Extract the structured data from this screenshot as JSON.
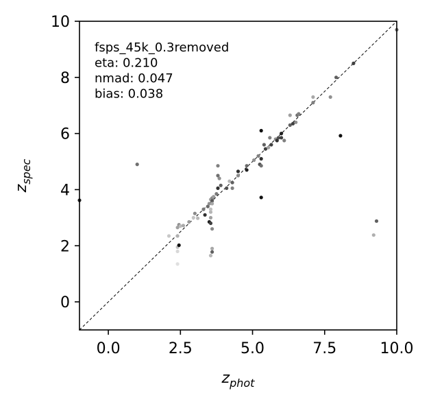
{
  "chart_data": {
    "type": "scatter",
    "xlim": [
      -1,
      10
    ],
    "ylim": [
      -1,
      10
    ],
    "xticks": [
      0.0,
      2.5,
      5.0,
      7.5,
      10.0
    ],
    "xtick_labels": [
      "0.0",
      "2.5",
      "5.0",
      "7.5",
      "10.0"
    ],
    "yticks": [
      0,
      2,
      4,
      6,
      8,
      10
    ],
    "ytick_labels": [
      "0",
      "2",
      "4",
      "6",
      "8",
      "10"
    ],
    "xlabel": {
      "base": "z",
      "sub": "phot"
    },
    "ylabel": {
      "base": "z",
      "sub": "spec"
    },
    "grid": false,
    "reference_line": "y = x (dashed)",
    "annotation_lines": [
      "fsps_45k_0.3removed",
      "eta: 0.210",
      "nmad: 0.047",
      "bias: 0.038"
    ],
    "points": [
      {
        "x": -1.0,
        "y": 3.62,
        "c": "#202020"
      },
      {
        "x": 1.0,
        "y": 4.9,
        "c": "#707070"
      },
      {
        "x": 2.1,
        "y": 2.35,
        "c": "#c8c8c8"
      },
      {
        "x": 2.4,
        "y": 1.35,
        "c": "#e0e0e0"
      },
      {
        "x": 2.4,
        "y": 1.8,
        "c": "#d8d8d8"
      },
      {
        "x": 2.4,
        "y": 1.95,
        "c": "#c0c0c0"
      },
      {
        "x": 2.4,
        "y": 2.35,
        "c": "#b0b0b0"
      },
      {
        "x": 2.4,
        "y": 2.65,
        "c": "#a0a0a0"
      },
      {
        "x": 2.45,
        "y": 2.75,
        "c": "#909090"
      },
      {
        "x": 2.45,
        "y": 2.02,
        "c": "#101010"
      },
      {
        "x": 2.5,
        "y": 2.7,
        "c": "#bcbcbc"
      },
      {
        "x": 2.6,
        "y": 2.72,
        "c": "#a8a8a8"
      },
      {
        "x": 2.8,
        "y": 2.85,
        "c": "#9a9a9a"
      },
      {
        "x": 2.95,
        "y": 3.0,
        "c": "#c4c4c4"
      },
      {
        "x": 3.0,
        "y": 3.15,
        "c": "#8a8a8a"
      },
      {
        "x": 3.1,
        "y": 2.98,
        "c": "#b8b8b8"
      },
      {
        "x": 3.3,
        "y": 3.3,
        "c": "#7a7a7a"
      },
      {
        "x": 3.35,
        "y": 3.1,
        "c": "#303030"
      },
      {
        "x": 3.45,
        "y": 3.4,
        "c": "#6a6a6a"
      },
      {
        "x": 3.5,
        "y": 3.5,
        "c": "#909090"
      },
      {
        "x": 3.5,
        "y": 2.85,
        "c": "#202020"
      },
      {
        "x": 3.55,
        "y": 3.65,
        "c": "#a0a0a0"
      },
      {
        "x": 3.55,
        "y": 3.2,
        "c": "#b5b5b5"
      },
      {
        "x": 3.6,
        "y": 3.7,
        "c": "#888888"
      },
      {
        "x": 3.6,
        "y": 3.6,
        "c": "#555555"
      },
      {
        "x": 3.6,
        "y": 3.5,
        "c": "#a8a8a8"
      },
      {
        "x": 3.55,
        "y": 3.3,
        "c": "#c0c0c0"
      },
      {
        "x": 3.55,
        "y": 3.0,
        "c": "#a0a0a0"
      },
      {
        "x": 3.55,
        "y": 2.8,
        "c": "#404040"
      },
      {
        "x": 3.6,
        "y": 2.6,
        "c": "#888888"
      },
      {
        "x": 3.6,
        "y": 1.9,
        "c": "#a8a8a8"
      },
      {
        "x": 3.6,
        "y": 1.78,
        "c": "#606060"
      },
      {
        "x": 3.55,
        "y": 1.65,
        "c": "#b8b8b8"
      },
      {
        "x": 3.65,
        "y": 3.75,
        "c": "#9c9c9c"
      },
      {
        "x": 3.75,
        "y": 3.85,
        "c": "#7a7a7a"
      },
      {
        "x": 3.8,
        "y": 4.05,
        "c": "#303030"
      },
      {
        "x": 3.8,
        "y": 4.5,
        "c": "#707070"
      },
      {
        "x": 3.8,
        "y": 4.85,
        "c": "#808080"
      },
      {
        "x": 3.85,
        "y": 4.4,
        "c": "#909090"
      },
      {
        "x": 3.9,
        "y": 4.15,
        "c": "#606060"
      },
      {
        "x": 4.1,
        "y": 4.05,
        "c": "#505050"
      },
      {
        "x": 4.2,
        "y": 4.3,
        "c": "#b5b5b5"
      },
      {
        "x": 4.3,
        "y": 4.25,
        "c": "#606060"
      },
      {
        "x": 4.3,
        "y": 4.05,
        "c": "#808080"
      },
      {
        "x": 4.5,
        "y": 4.65,
        "c": "#303030"
      },
      {
        "x": 4.5,
        "y": 4.5,
        "c": "#8a8a8a"
      },
      {
        "x": 4.8,
        "y": 4.85,
        "c": "#6a6a6a"
      },
      {
        "x": 4.8,
        "y": 4.7,
        "c": "#202020"
      },
      {
        "x": 5.05,
        "y": 5.05,
        "c": "#909090"
      },
      {
        "x": 5.2,
        "y": 5.2,
        "c": "#808080"
      },
      {
        "x": 5.25,
        "y": 4.9,
        "c": "#505050"
      },
      {
        "x": 5.3,
        "y": 4.85,
        "c": "#707070"
      },
      {
        "x": 5.3,
        "y": 5.1,
        "c": "#303030"
      },
      {
        "x": 5.3,
        "y": 6.1,
        "c": "#101010"
      },
      {
        "x": 5.3,
        "y": 3.72,
        "c": "#101010"
      },
      {
        "x": 5.4,
        "y": 5.6,
        "c": "#606060"
      },
      {
        "x": 5.45,
        "y": 5.45,
        "c": "#404040"
      },
      {
        "x": 5.55,
        "y": 5.5,
        "c": "#a0a0a0"
      },
      {
        "x": 5.6,
        "y": 5.85,
        "c": "#808080"
      },
      {
        "x": 5.65,
        "y": 5.6,
        "c": "#404040"
      },
      {
        "x": 5.8,
        "y": 5.8,
        "c": "#909090"
      },
      {
        "x": 5.85,
        "y": 5.75,
        "c": "#303030"
      },
      {
        "x": 5.9,
        "y": 5.85,
        "c": "#505050"
      },
      {
        "x": 6.0,
        "y": 6.0,
        "c": "#202020"
      },
      {
        "x": 6.0,
        "y": 5.85,
        "c": "#404040"
      },
      {
        "x": 6.1,
        "y": 5.75,
        "c": "#808080"
      },
      {
        "x": 6.3,
        "y": 6.65,
        "c": "#a0a0a0"
      },
      {
        "x": 6.3,
        "y": 6.3,
        "c": "#606060"
      },
      {
        "x": 6.4,
        "y": 6.35,
        "c": "#404040"
      },
      {
        "x": 6.5,
        "y": 6.4,
        "c": "#909090"
      },
      {
        "x": 6.55,
        "y": 6.65,
        "c": "#707070"
      },
      {
        "x": 6.6,
        "y": 6.7,
        "c": "#808080"
      },
      {
        "x": 7.1,
        "y": 7.1,
        "c": "#808080"
      },
      {
        "x": 7.1,
        "y": 7.3,
        "c": "#a8a8a8"
      },
      {
        "x": 7.7,
        "y": 7.3,
        "c": "#909090"
      },
      {
        "x": 7.9,
        "y": 8.0,
        "c": "#606060"
      },
      {
        "x": 8.05,
        "y": 5.92,
        "c": "#101010"
      },
      {
        "x": 8.5,
        "y": 8.5,
        "c": "#404040"
      },
      {
        "x": 9.2,
        "y": 2.38,
        "c": "#b0b0b0"
      },
      {
        "x": 9.3,
        "y": 2.88,
        "c": "#606060"
      },
      {
        "x": 10.0,
        "y": 9.7,
        "c": "#707070"
      }
    ]
  }
}
